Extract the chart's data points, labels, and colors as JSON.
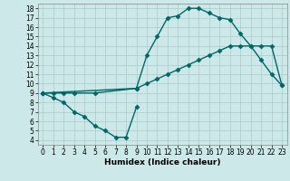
{
  "xlabel": "Humidex (Indice chaleur)",
  "bg_color": "#cce8e8",
  "grid_color": "#aacccc",
  "line_color": "#006666",
  "xlim": [
    -0.5,
    23.5
  ],
  "ylim": [
    3.5,
    18.5
  ],
  "xticks": [
    0,
    1,
    2,
    3,
    4,
    5,
    6,
    7,
    8,
    9,
    10,
    11,
    12,
    13,
    14,
    15,
    16,
    17,
    18,
    19,
    20,
    21,
    22,
    23
  ],
  "yticks": [
    4,
    5,
    6,
    7,
    8,
    9,
    10,
    11,
    12,
    13,
    14,
    15,
    16,
    17,
    18
  ],
  "line1_x": [
    0,
    1,
    2,
    3,
    4,
    5,
    6,
    7,
    8,
    9
  ],
  "line1_y": [
    9,
    8.5,
    8,
    7,
    6.5,
    5.5,
    5.0,
    4.3,
    4.3,
    7.5
  ],
  "line2_x": [
    0,
    1,
    2,
    3,
    5,
    9,
    10,
    11,
    12,
    13,
    14,
    15,
    16,
    17,
    18,
    19,
    20,
    21,
    22,
    23
  ],
  "line2_y": [
    9,
    9,
    9,
    9,
    9,
    9.5,
    10,
    10.5,
    11,
    11.5,
    12,
    12.5,
    13,
    13.5,
    14,
    14,
    14,
    14,
    14,
    9.8
  ],
  "line3_x": [
    0,
    9,
    10,
    11,
    12,
    13,
    14,
    15,
    16,
    17,
    18,
    19,
    20,
    21,
    22,
    23
  ],
  "line3_y": [
    9,
    9.5,
    13,
    15,
    17,
    17.2,
    18,
    18,
    17.5,
    17,
    16.8,
    15.3,
    14,
    12.5,
    11,
    9.8
  ],
  "marker": "D",
  "markersize": 2.5,
  "linewidth": 1.0
}
